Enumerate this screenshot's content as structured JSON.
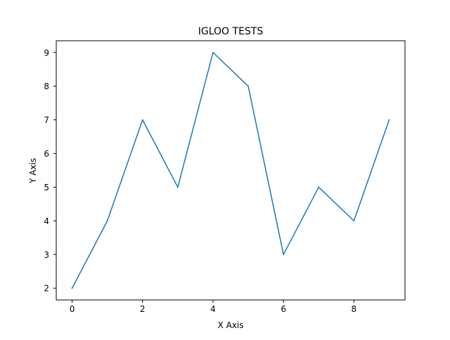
{
  "chart_data": {
    "type": "line",
    "title": "IGLOO TESTS",
    "xlabel": "X Axis",
    "ylabel": "Y Axis",
    "xlim": [
      -0.45,
      9.45
    ],
    "ylim": [
      1.65,
      9.35
    ],
    "x_ticks": [
      0,
      2,
      4,
      6,
      8
    ],
    "x_tick_labels": [
      "0",
      "2",
      "4",
      "6",
      "8"
    ],
    "y_ticks": [
      2,
      3,
      4,
      5,
      6,
      7,
      8,
      9
    ],
    "y_tick_labels": [
      "2",
      "3",
      "4",
      "5",
      "6",
      "7",
      "8",
      "9"
    ],
    "grid": false,
    "legend": "none",
    "series": [
      {
        "x": [
          0,
          1,
          2,
          3,
          4,
          5,
          6,
          7,
          8,
          9
        ],
        "values": [
          2,
          4,
          7,
          5,
          9,
          8,
          3,
          5,
          4,
          7
        ],
        "color": "#1f77b4"
      }
    ]
  }
}
